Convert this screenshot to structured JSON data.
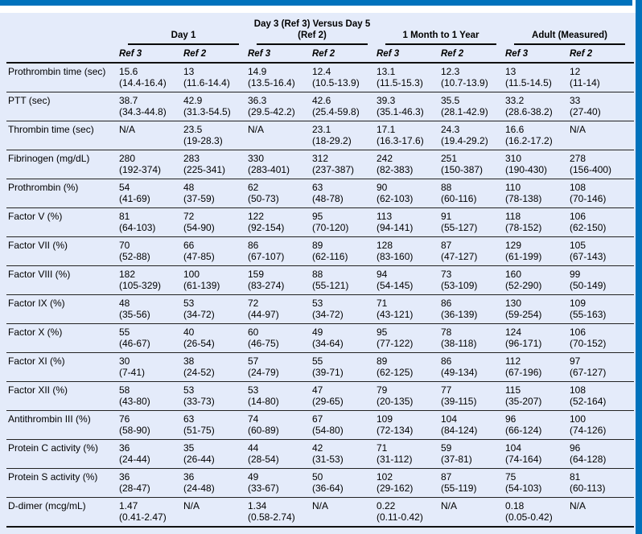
{
  "theme": {
    "accent_color": "#0072bc",
    "background_color": "#e4ebfa",
    "rule_color": "#111111"
  },
  "table": {
    "column_groups": [
      {
        "lines": [
          "Day 1"
        ]
      },
      {
        "lines": [
          "Day 3 (Ref 3) Versus Day 5",
          "(Ref 2)"
        ]
      },
      {
        "lines": [
          "1 Month to 1 Year"
        ]
      },
      {
        "lines": [
          "Adult (Measured)"
        ]
      }
    ],
    "ref_headers": [
      "Ref 3",
      "Ref 2",
      "Ref 3",
      "Ref 2",
      "Ref 3",
      "Ref 2",
      "Ref 3",
      "Ref 2"
    ],
    "rows": [
      {
        "label": "Prothrombin time (sec)",
        "cells": [
          {
            "value": "15.6",
            "range": "(14.4-16.4)"
          },
          {
            "value": "13",
            "range": "(11.6-14.4)"
          },
          {
            "value": "14.9",
            "range": "(13.5-16.4)"
          },
          {
            "value": "12.4",
            "range": "(10.5-13.9)"
          },
          {
            "value": "13.1",
            "range": "(11.5-15.3)"
          },
          {
            "value": "12.3",
            "range": "(10.7-13.9)"
          },
          {
            "value": "13",
            "range": "(11.5-14.5)"
          },
          {
            "value": "12",
            "range": "(11-14)"
          }
        ]
      },
      {
        "label": "PTT (sec)",
        "cells": [
          {
            "value": "38.7",
            "range": "(34.3-44.8)"
          },
          {
            "value": "42.9",
            "range": "(31.3-54.5)"
          },
          {
            "value": "36.3",
            "range": "(29.5-42.2)"
          },
          {
            "value": "42.6",
            "range": "(25.4-59.8)"
          },
          {
            "value": "39.3",
            "range": "(35.1-46.3)"
          },
          {
            "value": "35.5",
            "range": "(28.1-42.9)"
          },
          {
            "value": "33.2",
            "range": "(28.6-38.2)"
          },
          {
            "value": "33",
            "range": "(27-40)"
          }
        ]
      },
      {
        "label": "Thrombin time (sec)",
        "cells": [
          {
            "value": "N/A",
            "range": ""
          },
          {
            "value": "23.5",
            "range": "(19-28.3)"
          },
          {
            "value": "N/A",
            "range": ""
          },
          {
            "value": "23.1",
            "range": "(18-29.2)"
          },
          {
            "value": "17.1",
            "range": "(16.3-17.6)"
          },
          {
            "value": "24.3",
            "range": "(19.4-29.2)"
          },
          {
            "value": "16.6",
            "range": "(16.2-17.2)"
          },
          {
            "value": "N/A",
            "range": ""
          }
        ]
      },
      {
        "label": "Fibrinogen (mg/dL)",
        "cells": [
          {
            "value": "280",
            "range": "(192-374)"
          },
          {
            "value": "283",
            "range": "(225-341)"
          },
          {
            "value": "330",
            "range": "(283-401)"
          },
          {
            "value": "312",
            "range": "(237-387)"
          },
          {
            "value": "242",
            "range": "(82-383)"
          },
          {
            "value": "251",
            "range": "(150-387)"
          },
          {
            "value": "310",
            "range": "(190-430)"
          },
          {
            "value": "278",
            "range": "(156-400)"
          }
        ]
      },
      {
        "label": "Prothrombin (%)",
        "cells": [
          {
            "value": "54",
            "range": "(41-69)"
          },
          {
            "value": "48",
            "range": "(37-59)"
          },
          {
            "value": "62",
            "range": "(50-73)"
          },
          {
            "value": "63",
            "range": "(48-78)"
          },
          {
            "value": "90",
            "range": "(62-103)"
          },
          {
            "value": "88",
            "range": "(60-116)"
          },
          {
            "value": "110",
            "range": "(78-138)"
          },
          {
            "value": "108",
            "range": "(70-146)"
          }
        ]
      },
      {
        "label": "Factor V (%)",
        "cells": [
          {
            "value": "81",
            "range": "(64-103)"
          },
          {
            "value": "72",
            "range": "(54-90)"
          },
          {
            "value": "122",
            "range": "(92-154)"
          },
          {
            "value": "95",
            "range": "(70-120)"
          },
          {
            "value": "113",
            "range": "(94-141)"
          },
          {
            "value": "91",
            "range": "(55-127)"
          },
          {
            "value": "118",
            "range": "(78-152)"
          },
          {
            "value": "106",
            "range": "(62-150)"
          }
        ]
      },
      {
        "label": "Factor VII (%)",
        "cells": [
          {
            "value": "70",
            "range": "(52-88)"
          },
          {
            "value": "66",
            "range": "(47-85)"
          },
          {
            "value": "86",
            "range": "(67-107)"
          },
          {
            "value": "89",
            "range": "(62-116)"
          },
          {
            "value": "128",
            "range": "(83-160)"
          },
          {
            "value": "87",
            "range": "(47-127)"
          },
          {
            "value": "129",
            "range": "(61-199)"
          },
          {
            "value": "105",
            "range": "(67-143)"
          }
        ]
      },
      {
        "label": "Factor VIII (%)",
        "cells": [
          {
            "value": "182",
            "range": "(105-329)"
          },
          {
            "value": "100",
            "range": "(61-139)"
          },
          {
            "value": "159",
            "range": "(83-274)"
          },
          {
            "value": "88",
            "range": "(55-121)"
          },
          {
            "value": "94",
            "range": "(54-145)"
          },
          {
            "value": "73",
            "range": "(53-109)"
          },
          {
            "value": "160",
            "range": "(52-290)"
          },
          {
            "value": "99",
            "range": "(50-149)"
          }
        ]
      },
      {
        "label": "Factor IX (%)",
        "cells": [
          {
            "value": "48",
            "range": "(35-56)"
          },
          {
            "value": "53",
            "range": "(34-72)"
          },
          {
            "value": "72",
            "range": "(44-97)"
          },
          {
            "value": "53",
            "range": "(34-72)"
          },
          {
            "value": "71",
            "range": "(43-121)"
          },
          {
            "value": "86",
            "range": "(36-139)"
          },
          {
            "value": "130",
            "range": "(59-254)"
          },
          {
            "value": "109",
            "range": "(55-163)"
          }
        ]
      },
      {
        "label": "Factor X (%)",
        "cells": [
          {
            "value": "55",
            "range": "(46-67)"
          },
          {
            "value": "40",
            "range": "(26-54)"
          },
          {
            "value": "60",
            "range": "(46-75)"
          },
          {
            "value": "49",
            "range": "(34-64)"
          },
          {
            "value": "95",
            "range": "(77-122)"
          },
          {
            "value": "78",
            "range": "(38-118)"
          },
          {
            "value": "124",
            "range": "(96-171)"
          },
          {
            "value": "106",
            "range": "(70-152)"
          }
        ]
      },
      {
        "label": "Factor XI (%)",
        "cells": [
          {
            "value": "30",
            "range": "(7-41)"
          },
          {
            "value": "38",
            "range": "(24-52)"
          },
          {
            "value": "57",
            "range": "(24-79)"
          },
          {
            "value": "55",
            "range": "(39-71)"
          },
          {
            "value": "89",
            "range": "(62-125)"
          },
          {
            "value": "86",
            "range": "(49-134)"
          },
          {
            "value": "112",
            "range": "(67-196)"
          },
          {
            "value": "97",
            "range": "(67-127)"
          }
        ]
      },
      {
        "label": "Factor XII (%)",
        "cells": [
          {
            "value": "58",
            "range": "(43-80)"
          },
          {
            "value": "53",
            "range": "(33-73)"
          },
          {
            "value": "53",
            "range": "(14-80)"
          },
          {
            "value": "47",
            "range": "(29-65)"
          },
          {
            "value": "79",
            "range": "(20-135)"
          },
          {
            "value": "77",
            "range": "(39-115)"
          },
          {
            "value": "115",
            "range": "(35-207)"
          },
          {
            "value": "108",
            "range": "(52-164)"
          }
        ]
      },
      {
        "label": "Antithrombin III (%)",
        "cells": [
          {
            "value": "76",
            "range": "(58-90)"
          },
          {
            "value": "63",
            "range": "(51-75)"
          },
          {
            "value": "74",
            "range": "(60-89)"
          },
          {
            "value": "67",
            "range": "(54-80)"
          },
          {
            "value": "109",
            "range": "(72-134)"
          },
          {
            "value": "104",
            "range": "(84-124)"
          },
          {
            "value": "96",
            "range": "(66-124)"
          },
          {
            "value": "100",
            "range": "(74-126)"
          }
        ]
      },
      {
        "label": "Protein C activity (%)",
        "cells": [
          {
            "value": "36",
            "range": "(24-44)"
          },
          {
            "value": "35",
            "range": "(26-44)"
          },
          {
            "value": "44",
            "range": "(28-54)"
          },
          {
            "value": "42",
            "range": "(31-53)"
          },
          {
            "value": "71",
            "range": "(31-112)"
          },
          {
            "value": "59",
            "range": "(37-81)"
          },
          {
            "value": "104",
            "range": "(74-164)"
          },
          {
            "value": "96",
            "range": "(64-128)"
          }
        ]
      },
      {
        "label": "Protein S activity (%)",
        "cells": [
          {
            "value": "36",
            "range": "(28-47)"
          },
          {
            "value": "36",
            "range": "(24-48)"
          },
          {
            "value": "49",
            "range": "(33-67)"
          },
          {
            "value": "50",
            "range": "(36-64)"
          },
          {
            "value": "102",
            "range": "(29-162)"
          },
          {
            "value": "87",
            "range": "(55-119)"
          },
          {
            "value": "75",
            "range": "(54-103)"
          },
          {
            "value": "81",
            "range": "(60-113)"
          }
        ]
      },
      {
        "label": "D-dimer (mcg/mL)",
        "cells": [
          {
            "value": "1.47",
            "range": "(0.41-2.47)"
          },
          {
            "value": "N/A",
            "range": ""
          },
          {
            "value": "1.34",
            "range": "(0.58-2.74)"
          },
          {
            "value": "N/A",
            "range": ""
          },
          {
            "value": "0.22",
            "range": "(0.11-0.42)"
          },
          {
            "value": "N/A",
            "range": ""
          },
          {
            "value": "0.18",
            "range": "(0.05-0.42)"
          },
          {
            "value": "N/A",
            "range": ""
          }
        ]
      }
    ]
  }
}
